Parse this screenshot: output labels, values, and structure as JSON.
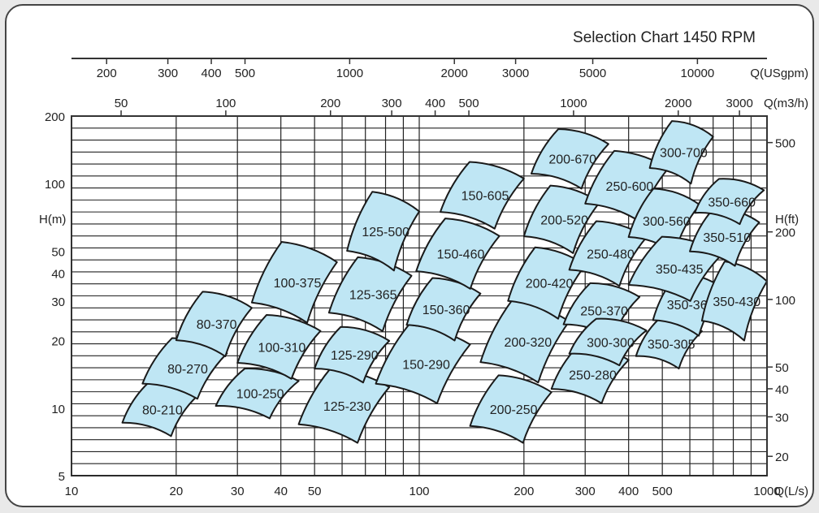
{
  "chart_data": {
    "type": "selection-chart",
    "title": "Selection Chart 1450 RPM",
    "axes": {
      "bottom": {
        "label": "Q(L/s)",
        "scale": "log",
        "range": [
          10,
          1000
        ],
        "ticks": [
          "10",
          "20",
          "30",
          "40",
          "50",
          "100",
          "200",
          "300",
          "400",
          "500",
          "1000"
        ]
      },
      "top_m3h": {
        "label": "Q(m3/h)",
        "scale": "log",
        "ticks": [
          "50",
          "100",
          "200",
          "300",
          "400",
          "500",
          "1000",
          "2000",
          "3000"
        ]
      },
      "top_usgpm": {
        "label": "Q(USgpm)",
        "scale": "log",
        "ticks": [
          "200",
          "300",
          "400",
          "500",
          "1000",
          "2000",
          "3000",
          "5000",
          "10000"
        ]
      },
      "left": {
        "label": "H(m)",
        "scale": "log",
        "range": [
          5,
          200
        ],
        "ticks": [
          "5",
          "10",
          "20",
          "30",
          "40",
          "50",
          "100",
          "200"
        ]
      },
      "right": {
        "label": "H(ft)",
        "scale": "log",
        "ticks": [
          "20",
          "30",
          "40",
          "50",
          "100",
          "200",
          "500"
        ]
      }
    },
    "grid": true,
    "zones": [
      {
        "name": "80-210",
        "q": [
          14,
          23
        ],
        "h": [
          7.5,
          13
        ]
      },
      {
        "name": "80-270",
        "q": [
          16,
          28
        ],
        "h": [
          11,
          20.5
        ]
      },
      {
        "name": "80-370",
        "q": [
          20,
          33
        ],
        "h": [
          17,
          33
        ]
      },
      {
        "name": "100-250",
        "q": [
          26,
          45
        ],
        "h": [
          9,
          15
        ]
      },
      {
        "name": "100-310",
        "q": [
          30,
          52
        ],
        "h": [
          13.5,
          26
        ]
      },
      {
        "name": "100-375",
        "q": [
          33,
          58
        ],
        "h": [
          24,
          55
        ]
      },
      {
        "name": "125-230",
        "q": [
          45,
          82
        ],
        "h": [
          7,
          15
        ]
      },
      {
        "name": "125-290",
        "q": [
          50,
          82
        ],
        "h": [
          13,
          23
        ]
      },
      {
        "name": "125-365",
        "q": [
          55,
          95
        ],
        "h": [
          22,
          47
        ]
      },
      {
        "name": "125-500",
        "q": [
          62,
          100
        ],
        "h": [
          41,
          92
        ]
      },
      {
        "name": "150-290",
        "q": [
          75,
          140
        ],
        "h": [
          10.5,
          23.5
        ]
      },
      {
        "name": "150-360",
        "q": [
          92,
          150
        ],
        "h": [
          20,
          38
        ]
      },
      {
        "name": "150-460",
        "q": [
          98,
          170
        ],
        "h": [
          34,
          70
        ]
      },
      {
        "name": "150-605",
        "q": [
          115,
          200
        ],
        "h": [
          63,
          125
        ]
      },
      {
        "name": "200-250",
        "q": [
          140,
          240
        ],
        "h": [
          7,
          14
        ]
      },
      {
        "name": "200-320",
        "q": [
          150,
          270
        ],
        "h": [
          13,
          30
        ]
      },
      {
        "name": "200-420",
        "q": [
          180,
          300
        ],
        "h": [
          25,
          52
        ]
      },
      {
        "name": "200-520",
        "q": [
          200,
          330
        ],
        "h": [
          49,
          98
        ]
      },
      {
        "name": "200-670",
        "q": [
          210,
          350
        ],
        "h": [
          95,
          175
        ]
      },
      {
        "name": "250-280",
        "q": [
          240,
          400
        ],
        "h": [
          10.5,
          19
        ]
      },
      {
        "name": "250-370",
        "q": [
          260,
          430
        ],
        "h": [
          20.5,
          36
        ]
      },
      {
        "name": "250-480",
        "q": [
          270,
          450
        ],
        "h": [
          35,
          68
        ]
      },
      {
        "name": "250-600",
        "q": [
          300,
          520
        ],
        "h": [
          68,
          140
        ]
      },
      {
        "name": "300-300",
        "q": [
          270,
          450
        ],
        "h": [
          15.5,
          25
        ]
      },
      {
        "name": "300-560",
        "q": [
          400,
          640
        ],
        "h": [
          49,
          95
        ]
      },
      {
        "name": "300-700",
        "q": [
          460,
          700
        ],
        "h": [
          100,
          190
        ]
      },
      {
        "name": "350-305",
        "q": [
          420,
          650
        ],
        "h": [
          15,
          25
        ]
      },
      {
        "name": "350-360",
        "q": [
          470,
          750
        ],
        "h": [
          21,
          40
        ]
      },
      {
        "name": "350-435",
        "q": [
          400,
          750
        ],
        "h": [
          30,
          58
        ]
      },
      {
        "name": "350-430",
        "q": [
          650,
          1000
        ],
        "h": [
          20,
          45
        ]
      },
      {
        "name": "350-510",
        "q": [
          600,
          950
        ],
        "h": [
          43,
          78
        ]
      },
      {
        "name": "350-660",
        "q": [
          620,
          980
        ],
        "h": [
          66,
          105
        ]
      }
    ]
  }
}
